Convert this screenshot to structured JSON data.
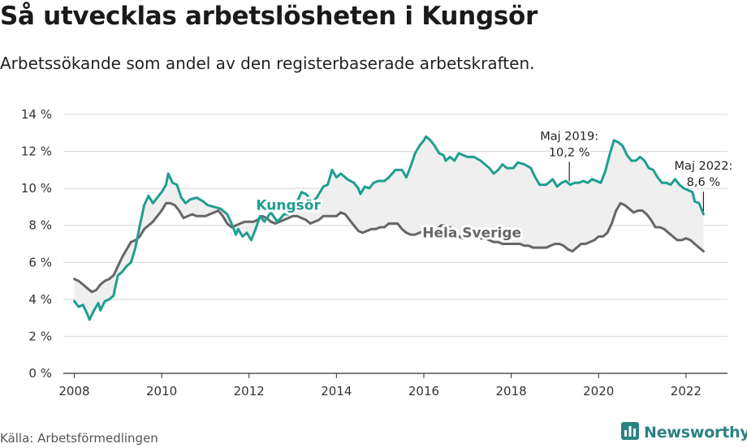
{
  "title": "Så utvecklas arbetslösheten i Kungsör",
  "subtitle": "Arbetssökande som andel av den registerbaserade arbetskraften.",
  "source": "Källa: Arbetsförmedlingen",
  "brand": {
    "name": "Newsworthy",
    "icon": "bar-chart-logo-icon"
  },
  "colors": {
    "local": "#1f9e8f",
    "national": "#666666",
    "fill": "#efefef",
    "grid": "#d5d5d5",
    "axis": "#333333",
    "brand": "#2b8282"
  },
  "chart_data": {
    "type": "line",
    "xlabel": "",
    "ylabel": "",
    "xlim": [
      2007.75,
      2022.95
    ],
    "ylim": [
      0,
      14
    ],
    "x_ticks": [
      {
        "value": 2008,
        "label": "2008"
      },
      {
        "value": 2010,
        "label": "2010"
      },
      {
        "value": 2012,
        "label": "2012"
      },
      {
        "value": 2014,
        "label": "2014"
      },
      {
        "value": 2016,
        "label": "2016"
      },
      {
        "value": 2018,
        "label": "2018"
      },
      {
        "value": 2020,
        "label": "2020"
      },
      {
        "value": 2022,
        "label": "2022"
      }
    ],
    "y_ticks": [
      {
        "value": 0,
        "label": "0 %"
      },
      {
        "value": 2,
        "label": "2 %"
      },
      {
        "value": 4,
        "label": "4 %"
      },
      {
        "value": 6,
        "label": "6 %"
      },
      {
        "value": 8,
        "label": "8 %"
      },
      {
        "value": 10,
        "label": "10 %"
      },
      {
        "value": 12,
        "label": "12 %"
      },
      {
        "value": 14,
        "label": "14 %"
      }
    ],
    "grid": true,
    "area_between_series": true,
    "series": [
      {
        "name": "Kungsör",
        "label_position": [
          2012.9,
          8.85
        ],
        "points": [
          [
            2008.0,
            3.9
          ],
          [
            2008.1,
            3.6
          ],
          [
            2008.2,
            3.7
          ],
          [
            2008.3,
            3.2
          ],
          [
            2008.35,
            2.9
          ],
          [
            2008.45,
            3.4
          ],
          [
            2008.55,
            3.8
          ],
          [
            2008.6,
            3.4
          ],
          [
            2008.7,
            3.9
          ],
          [
            2008.8,
            4.0
          ],
          [
            2008.9,
            4.2
          ],
          [
            2008.95,
            4.8
          ],
          [
            2009.0,
            5.3
          ],
          [
            2009.1,
            5.5
          ],
          [
            2009.2,
            5.8
          ],
          [
            2009.3,
            6.0
          ],
          [
            2009.4,
            6.8
          ],
          [
            2009.5,
            8.0
          ],
          [
            2009.6,
            9.1
          ],
          [
            2009.7,
            9.6
          ],
          [
            2009.8,
            9.2
          ],
          [
            2009.9,
            9.5
          ],
          [
            2010.0,
            9.8
          ],
          [
            2010.1,
            10.2
          ],
          [
            2010.15,
            10.8
          ],
          [
            2010.25,
            10.3
          ],
          [
            2010.35,
            10.2
          ],
          [
            2010.45,
            9.5
          ],
          [
            2010.55,
            9.2
          ],
          [
            2010.65,
            9.4
          ],
          [
            2010.8,
            9.5
          ],
          [
            2010.95,
            9.3
          ],
          [
            2011.05,
            9.1
          ],
          [
            2011.2,
            9.0
          ],
          [
            2011.35,
            8.9
          ],
          [
            2011.5,
            8.6
          ],
          [
            2011.6,
            8.1
          ],
          [
            2011.7,
            7.5
          ],
          [
            2011.75,
            7.8
          ],
          [
            2011.85,
            7.4
          ],
          [
            2011.95,
            7.6
          ],
          [
            2012.05,
            7.2
          ],
          [
            2012.15,
            7.8
          ],
          [
            2012.25,
            8.5
          ],
          [
            2012.35,
            8.2
          ],
          [
            2012.5,
            8.7
          ],
          [
            2012.65,
            8.2
          ],
          [
            2012.8,
            8.6
          ],
          [
            2012.9,
            8.6
          ],
          [
            2013.05,
            9.0
          ],
          [
            2013.2,
            9.8
          ],
          [
            2013.3,
            9.7
          ],
          [
            2013.45,
            9.3
          ],
          [
            2013.55,
            9.5
          ],
          [
            2013.7,
            10.1
          ],
          [
            2013.8,
            10.2
          ],
          [
            2013.9,
            11.0
          ],
          [
            2014.0,
            10.6
          ],
          [
            2014.1,
            10.8
          ],
          [
            2014.25,
            10.5
          ],
          [
            2014.4,
            10.3
          ],
          [
            2014.5,
            10.0
          ],
          [
            2014.55,
            9.7
          ],
          [
            2014.65,
            10.1
          ],
          [
            2014.75,
            10.0
          ],
          [
            2014.85,
            10.3
          ],
          [
            2014.95,
            10.4
          ],
          [
            2015.1,
            10.4
          ],
          [
            2015.2,
            10.6
          ],
          [
            2015.35,
            11.0
          ],
          [
            2015.5,
            11.0
          ],
          [
            2015.6,
            10.6
          ],
          [
            2015.7,
            11.2
          ],
          [
            2015.8,
            11.9
          ],
          [
            2015.9,
            12.3
          ],
          [
            2016.0,
            12.6
          ],
          [
            2016.05,
            12.8
          ],
          [
            2016.15,
            12.6
          ],
          [
            2016.25,
            12.3
          ],
          [
            2016.35,
            11.9
          ],
          [
            2016.45,
            11.8
          ],
          [
            2016.5,
            11.5
          ],
          [
            2016.6,
            11.7
          ],
          [
            2016.7,
            11.5
          ],
          [
            2016.8,
            11.9
          ],
          [
            2016.9,
            11.8
          ],
          [
            2017.0,
            11.7
          ],
          [
            2017.15,
            11.7
          ],
          [
            2017.3,
            11.5
          ],
          [
            2017.4,
            11.3
          ],
          [
            2017.5,
            11.1
          ],
          [
            2017.6,
            10.8
          ],
          [
            2017.7,
            11.0
          ],
          [
            2017.8,
            11.3
          ],
          [
            2017.9,
            11.1
          ],
          [
            2018.05,
            11.1
          ],
          [
            2018.15,
            11.4
          ],
          [
            2018.3,
            11.3
          ],
          [
            2018.45,
            11.1
          ],
          [
            2018.55,
            10.6
          ],
          [
            2018.65,
            10.2
          ],
          [
            2018.8,
            10.2
          ],
          [
            2018.95,
            10.5
          ],
          [
            2019.05,
            10.1
          ],
          [
            2019.15,
            10.3
          ],
          [
            2019.25,
            10.4
          ],
          [
            2019.35,
            10.2
          ],
          [
            2019.45,
            10.3
          ],
          [
            2019.55,
            10.3
          ],
          [
            2019.65,
            10.4
          ],
          [
            2019.75,
            10.3
          ],
          [
            2019.85,
            10.5
          ],
          [
            2019.95,
            10.4
          ],
          [
            2020.05,
            10.3
          ],
          [
            2020.15,
            10.9
          ],
          [
            2020.25,
            11.8
          ],
          [
            2020.35,
            12.6
          ],
          [
            2020.45,
            12.5
          ],
          [
            2020.55,
            12.3
          ],
          [
            2020.65,
            11.8
          ],
          [
            2020.75,
            11.5
          ],
          [
            2020.85,
            11.5
          ],
          [
            2020.95,
            11.7
          ],
          [
            2021.05,
            11.5
          ],
          [
            2021.15,
            11.1
          ],
          [
            2021.25,
            11.0
          ],
          [
            2021.35,
            10.6
          ],
          [
            2021.45,
            10.3
          ],
          [
            2021.55,
            10.3
          ],
          [
            2021.65,
            10.2
          ],
          [
            2021.75,
            10.5
          ],
          [
            2021.85,
            10.2
          ],
          [
            2021.95,
            10.0
          ],
          [
            2022.05,
            9.9
          ],
          [
            2022.15,
            9.8
          ],
          [
            2022.2,
            9.3
          ],
          [
            2022.3,
            9.2
          ],
          [
            2022.4,
            8.6
          ]
        ]
      },
      {
        "name": "Hela Sverige",
        "label_position": [
          2017.1,
          7.35
        ],
        "points": [
          [
            2008.0,
            5.1
          ],
          [
            2008.1,
            5.0
          ],
          [
            2008.2,
            4.8
          ],
          [
            2008.3,
            4.6
          ],
          [
            2008.4,
            4.4
          ],
          [
            2008.5,
            4.5
          ],
          [
            2008.6,
            4.8
          ],
          [
            2008.7,
            5.0
          ],
          [
            2008.8,
            5.1
          ],
          [
            2008.9,
            5.3
          ],
          [
            2009.0,
            5.8
          ],
          [
            2009.1,
            6.3
          ],
          [
            2009.2,
            6.7
          ],
          [
            2009.3,
            7.1
          ],
          [
            2009.4,
            7.2
          ],
          [
            2009.5,
            7.4
          ],
          [
            2009.6,
            7.8
          ],
          [
            2009.7,
            8.0
          ],
          [
            2009.8,
            8.2
          ],
          [
            2009.9,
            8.5
          ],
          [
            2010.0,
            8.8
          ],
          [
            2010.1,
            9.2
          ],
          [
            2010.2,
            9.2
          ],
          [
            2010.3,
            9.1
          ],
          [
            2010.4,
            8.8
          ],
          [
            2010.5,
            8.4
          ],
          [
            2010.6,
            8.5
          ],
          [
            2010.7,
            8.6
          ],
          [
            2010.8,
            8.5
          ],
          [
            2010.9,
            8.5
          ],
          [
            2011.0,
            8.5
          ],
          [
            2011.1,
            8.6
          ],
          [
            2011.2,
            8.7
          ],
          [
            2011.3,
            8.8
          ],
          [
            2011.4,
            8.5
          ],
          [
            2011.5,
            8.1
          ],
          [
            2011.6,
            7.9
          ],
          [
            2011.7,
            8.0
          ],
          [
            2011.8,
            8.1
          ],
          [
            2011.9,
            8.2
          ],
          [
            2012.0,
            8.2
          ],
          [
            2012.1,
            8.2
          ],
          [
            2012.2,
            8.3
          ],
          [
            2012.3,
            8.5
          ],
          [
            2012.4,
            8.4
          ],
          [
            2012.5,
            8.2
          ],
          [
            2012.6,
            8.1
          ],
          [
            2012.7,
            8.2
          ],
          [
            2012.8,
            8.3
          ],
          [
            2012.9,
            8.4
          ],
          [
            2013.0,
            8.5
          ],
          [
            2013.1,
            8.5
          ],
          [
            2013.2,
            8.4
          ],
          [
            2013.3,
            8.3
          ],
          [
            2013.4,
            8.1
          ],
          [
            2013.5,
            8.2
          ],
          [
            2013.6,
            8.3
          ],
          [
            2013.7,
            8.5
          ],
          [
            2013.8,
            8.5
          ],
          [
            2013.9,
            8.5
          ],
          [
            2014.0,
            8.5
          ],
          [
            2014.1,
            8.7
          ],
          [
            2014.2,
            8.6
          ],
          [
            2014.3,
            8.3
          ],
          [
            2014.4,
            8.0
          ],
          [
            2014.5,
            7.7
          ],
          [
            2014.6,
            7.6
          ],
          [
            2014.7,
            7.7
          ],
          [
            2014.8,
            7.8
          ],
          [
            2014.9,
            7.8
          ],
          [
            2015.0,
            7.9
          ],
          [
            2015.1,
            7.9
          ],
          [
            2015.2,
            8.1
          ],
          [
            2015.3,
            8.1
          ],
          [
            2015.4,
            8.1
          ],
          [
            2015.5,
            7.8
          ],
          [
            2015.6,
            7.6
          ],
          [
            2015.7,
            7.5
          ],
          [
            2015.8,
            7.5
          ],
          [
            2015.9,
            7.6
          ],
          [
            2016.0,
            7.7
          ],
          [
            2016.1,
            7.8
          ],
          [
            2016.2,
            7.8
          ],
          [
            2016.3,
            7.8
          ],
          [
            2016.4,
            8.0
          ],
          [
            2016.5,
            8.0
          ],
          [
            2016.6,
            7.9
          ],
          [
            2016.7,
            7.7
          ],
          [
            2016.8,
            7.4
          ],
          [
            2016.9,
            7.3
          ],
          [
            2017.0,
            7.4
          ],
          [
            2017.1,
            7.5
          ],
          [
            2017.2,
            7.4
          ],
          [
            2017.3,
            7.3
          ],
          [
            2017.4,
            7.3
          ],
          [
            2017.5,
            7.2
          ],
          [
            2017.6,
            7.1
          ],
          [
            2017.7,
            7.1
          ],
          [
            2017.8,
            7.0
          ],
          [
            2017.9,
            7.0
          ],
          [
            2018.0,
            7.0
          ],
          [
            2018.1,
            7.0
          ],
          [
            2018.2,
            7.0
          ],
          [
            2018.3,
            6.9
          ],
          [
            2018.4,
            6.9
          ],
          [
            2018.5,
            6.8
          ],
          [
            2018.6,
            6.8
          ],
          [
            2018.7,
            6.8
          ],
          [
            2018.8,
            6.8
          ],
          [
            2018.9,
            6.9
          ],
          [
            2019.0,
            7.0
          ],
          [
            2019.1,
            7.0
          ],
          [
            2019.2,
            6.9
          ],
          [
            2019.3,
            6.7
          ],
          [
            2019.4,
            6.6
          ],
          [
            2019.5,
            6.8
          ],
          [
            2019.6,
            7.0
          ],
          [
            2019.7,
            7.0
          ],
          [
            2019.8,
            7.1
          ],
          [
            2019.9,
            7.2
          ],
          [
            2020.0,
            7.4
          ],
          [
            2020.1,
            7.4
          ],
          [
            2020.2,
            7.6
          ],
          [
            2020.3,
            8.1
          ],
          [
            2020.4,
            8.8
          ],
          [
            2020.5,
            9.2
          ],
          [
            2020.6,
            9.1
          ],
          [
            2020.7,
            8.9
          ],
          [
            2020.8,
            8.7
          ],
          [
            2020.9,
            8.8
          ],
          [
            2021.0,
            8.8
          ],
          [
            2021.1,
            8.6
          ],
          [
            2021.2,
            8.3
          ],
          [
            2021.3,
            7.9
          ],
          [
            2021.4,
            7.9
          ],
          [
            2021.5,
            7.8
          ],
          [
            2021.6,
            7.6
          ],
          [
            2021.7,
            7.4
          ],
          [
            2021.8,
            7.2
          ],
          [
            2021.9,
            7.2
          ],
          [
            2022.0,
            7.3
          ],
          [
            2022.1,
            7.2
          ],
          [
            2022.2,
            7.0
          ],
          [
            2022.3,
            6.8
          ],
          [
            2022.4,
            6.6
          ]
        ]
      }
    ],
    "annotations": [
      {
        "lines": [
          "Maj 2019:",
          "10,2 %"
        ],
        "x": 2019.33,
        "y": 10.2
      },
      {
        "lines": [
          "Maj 2022:",
          "8,6 %"
        ],
        "x": 2022.4,
        "y": 8.6
      }
    ]
  }
}
